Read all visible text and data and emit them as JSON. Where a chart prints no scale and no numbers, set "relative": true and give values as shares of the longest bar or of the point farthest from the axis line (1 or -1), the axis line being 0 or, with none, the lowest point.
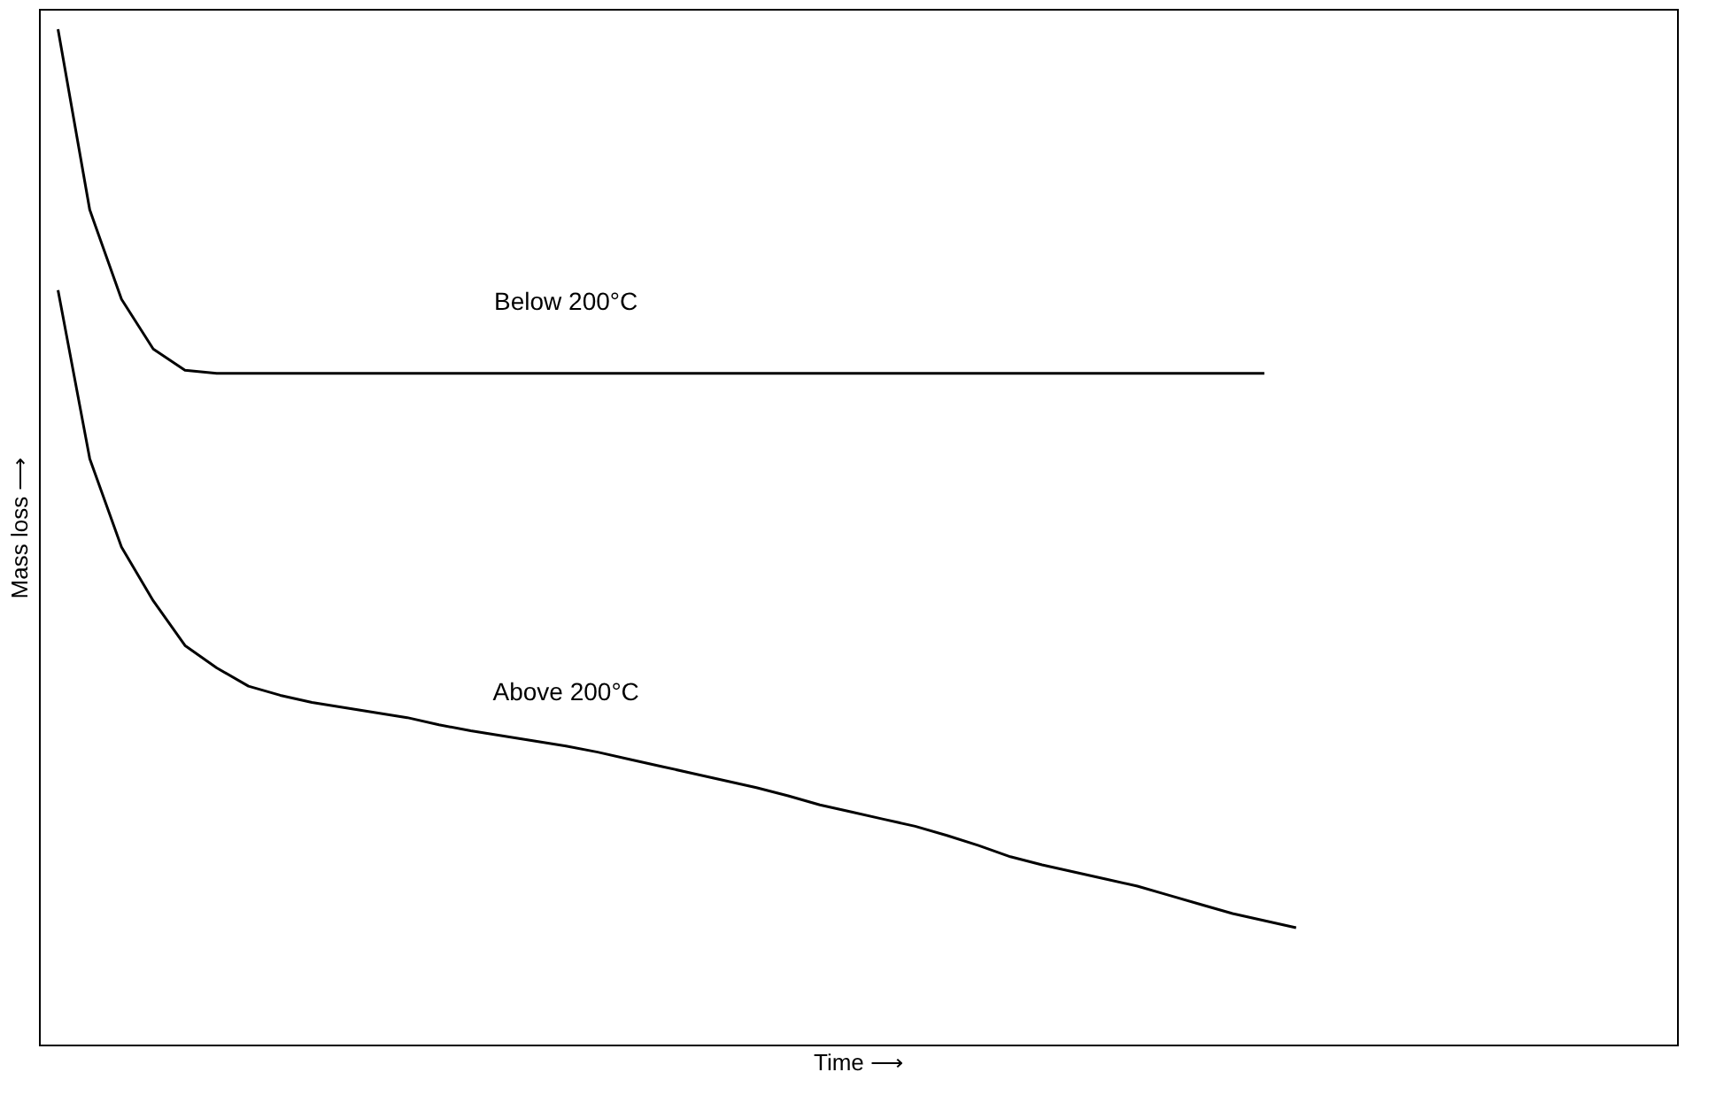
{
  "chart_data": {
    "type": "line",
    "relative": true,
    "xlabel": "Time ⟶",
    "ylabel": "Mass loss ⟶",
    "tick_labels": false,
    "grid": false,
    "marker": "none",
    "line_style": "solid",
    "categories": [
      null,
      null,
      null,
      null,
      null,
      null,
      null,
      null,
      null,
      null,
      null,
      null,
      null,
      null,
      null,
      null,
      null,
      null,
      null,
      null,
      null,
      null,
      null,
      null,
      null,
      null,
      null,
      null,
      null,
      null,
      null,
      null,
      null,
      null,
      null,
      null,
      null,
      null,
      null,
      null
    ],
    "series": [
      {
        "name": "Below 200°C",
        "color": "#000000",
        "values": [
          1.0,
          0.822,
          0.734,
          0.685,
          0.664,
          0.661,
          0.661,
          0.661,
          0.661,
          0.661,
          0.661,
          0.661,
          0.661,
          0.661,
          0.661,
          0.661,
          0.661,
          0.661,
          0.661,
          0.661,
          0.661,
          0.661,
          0.661,
          0.661,
          0.661,
          0.661,
          0.661,
          0.661,
          0.661,
          0.661,
          0.661,
          0.661,
          0.661,
          0.661,
          0.661,
          0.661,
          0.661,
          0.661,
          0.661,
          null
        ]
      },
      {
        "name": "Above 200°C",
        "color": "#000000",
        "values": [
          0.743,
          0.577,
          0.49,
          0.437,
          0.393,
          0.371,
          0.353,
          0.344,
          0.337,
          0.332,
          0.327,
          0.322,
          0.315,
          0.309,
          0.304,
          0.299,
          0.294,
          0.288,
          0.281,
          0.274,
          0.267,
          0.26,
          0.253,
          0.245,
          0.236,
          0.229,
          0.222,
          0.215,
          0.206,
          0.196,
          0.185,
          0.177,
          0.17,
          0.163,
          0.156,
          0.147,
          0.138,
          0.129,
          0.122,
          0.115
        ]
      }
    ]
  }
}
